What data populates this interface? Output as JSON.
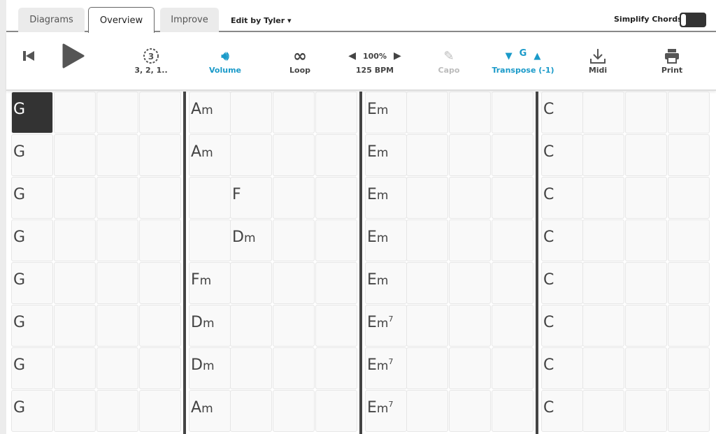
{
  "tabs": [
    {
      "label": "Diagrams"
    },
    {
      "label": "Overview",
      "active": true
    },
    {
      "label": "Improve"
    }
  ],
  "edit_by": "Edit by Tyler ▾",
  "simplify": {
    "label": "Simplify Chords",
    "on": true
  },
  "toolbar": {
    "countin": {
      "icon": "3",
      "label": "3, 2, 1.."
    },
    "volume": {
      "label": "Volume"
    },
    "loop": {
      "label": "Loop"
    },
    "tempo": {
      "percent": "100%",
      "bpm": "125 BPM"
    },
    "capo": {
      "label": "Capo"
    },
    "transpose": {
      "key": "G",
      "label": "Transpose (-1)"
    },
    "midi": {
      "label": "Midi"
    },
    "print": {
      "label": "Print"
    }
  },
  "colors": {
    "accent": "#1a9ac9",
    "selected": "#333333"
  },
  "selected_cell": [
    0,
    0
  ],
  "rows": [
    [
      [
        "G"
      ],
      [],
      [],
      [],
      [
        "A",
        "m"
      ],
      [],
      [],
      [],
      [
        "E",
        "m"
      ],
      [],
      [],
      [],
      [
        "C"
      ],
      [],
      [],
      []
    ],
    [
      [
        "G"
      ],
      [],
      [],
      [],
      [
        "A",
        "m"
      ],
      [],
      [],
      [],
      [
        "E",
        "m"
      ],
      [],
      [],
      [],
      [
        "C"
      ],
      [],
      [],
      []
    ],
    [
      [
        "G"
      ],
      [],
      [],
      [],
      [],
      [
        "F"
      ],
      [],
      [],
      [
        "E",
        "m"
      ],
      [],
      [],
      [],
      [
        "C"
      ],
      [],
      [],
      []
    ],
    [
      [
        "G"
      ],
      [],
      [],
      [],
      [],
      [
        "D",
        "m"
      ],
      [],
      [],
      [
        "E",
        "m"
      ],
      [],
      [],
      [],
      [
        "C"
      ],
      [],
      [],
      []
    ],
    [
      [
        "G"
      ],
      [],
      [],
      [],
      [
        "F",
        "m"
      ],
      [],
      [],
      [],
      [
        "E",
        "m"
      ],
      [],
      [],
      [],
      [
        "C"
      ],
      [],
      [],
      []
    ],
    [
      [
        "G"
      ],
      [],
      [],
      [],
      [
        "D",
        "m"
      ],
      [],
      [],
      [],
      [
        "E",
        "m",
        "7"
      ],
      [],
      [],
      [],
      [
        "C"
      ],
      [],
      [],
      []
    ],
    [
      [
        "G"
      ],
      [],
      [],
      [],
      [
        "D",
        "m"
      ],
      [],
      [],
      [],
      [
        "E",
        "m",
        "7"
      ],
      [],
      [],
      [],
      [
        "C"
      ],
      [],
      [],
      []
    ],
    [
      [
        "G"
      ],
      [],
      [],
      [],
      [
        "A",
        "m"
      ],
      [],
      [],
      [],
      [
        "E",
        "m",
        "7"
      ],
      [],
      [],
      [],
      [
        "C"
      ],
      [],
      [],
      []
    ]
  ]
}
